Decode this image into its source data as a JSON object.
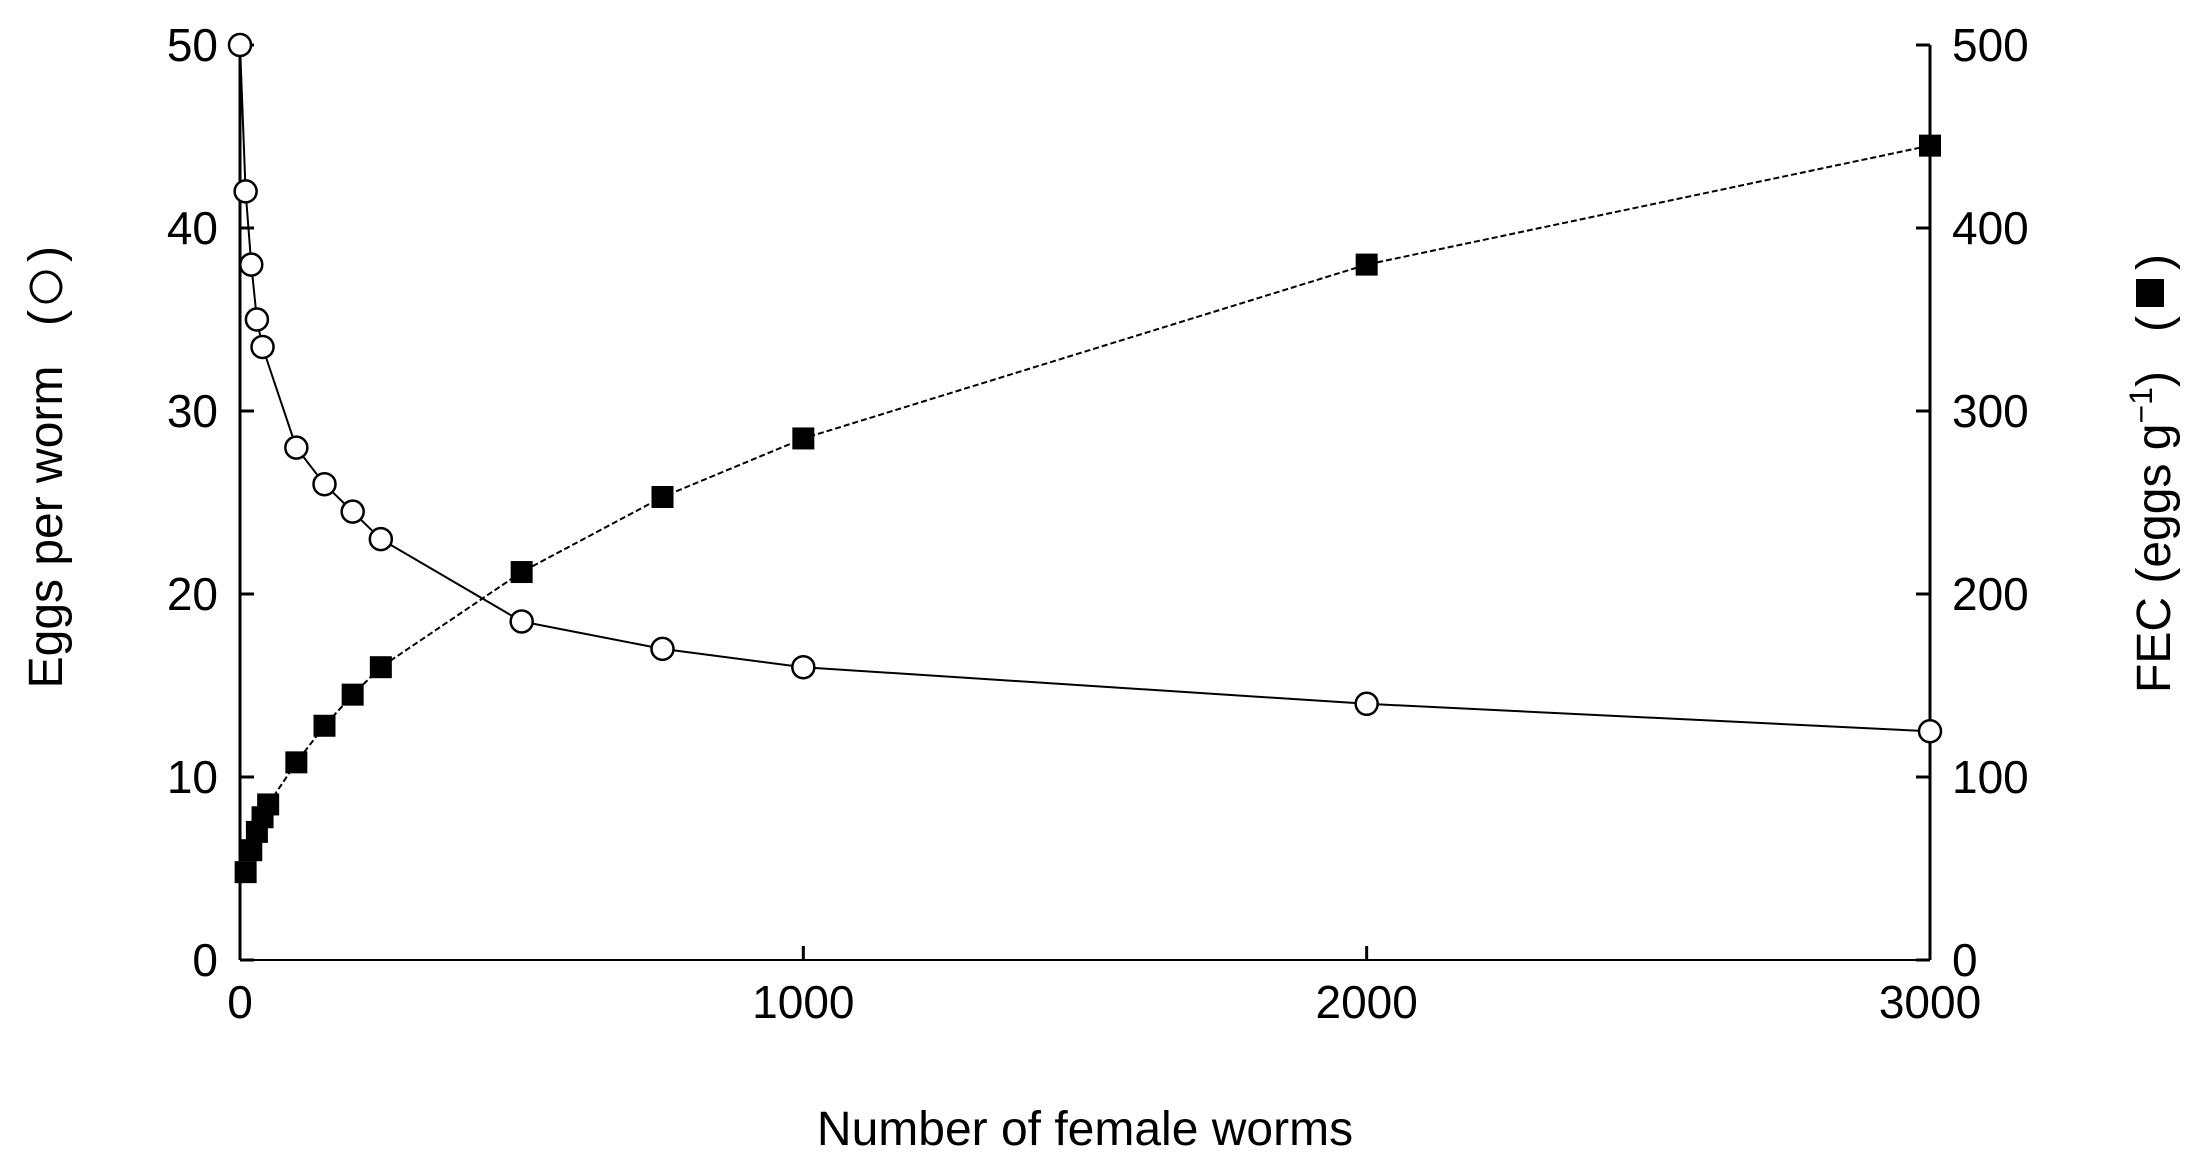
{
  "chart_data": {
    "type": "line",
    "xlabel": "Number of female worms",
    "ylabel_left": "Eggs per worm",
    "ylabel_right": "FEC (eggs g",
    "ylabel_right_sup": "−1",
    "ylabel_right_close": ")",
    "xlim": [
      0,
      3000
    ],
    "ylim_left": [
      0,
      50
    ],
    "ylim_right": [
      0,
      500
    ],
    "x_ticks": [
      "0",
      "1000",
      "2000",
      "3000"
    ],
    "y_left_ticks": [
      "0",
      "10",
      "20",
      "30",
      "40",
      "50"
    ],
    "y_right_ticks": [
      "0",
      "100",
      "200",
      "300",
      "400",
      "500"
    ],
    "grid": false,
    "series": [
      {
        "marker": "open-circle",
        "axis": "left",
        "x": [
          0,
          10,
          20,
          30,
          40,
          100,
          150,
          200,
          250,
          500,
          750,
          1000,
          2000,
          3000
        ],
        "y": [
          50,
          42,
          38,
          35,
          33.5,
          28,
          26,
          24.5,
          23,
          18.5,
          17,
          16,
          14,
          12.5
        ]
      },
      {
        "marker": "filled-square",
        "axis": "right",
        "x": [
          10,
          20,
          30,
          40,
          50,
          100,
          150,
          200,
          250,
          500,
          750,
          1000,
          2000,
          3000
        ],
        "y": [
          48,
          60,
          70,
          78,
          85,
          108,
          128,
          145,
          160,
          212,
          253,
          285,
          380,
          445
        ]
      }
    ]
  }
}
